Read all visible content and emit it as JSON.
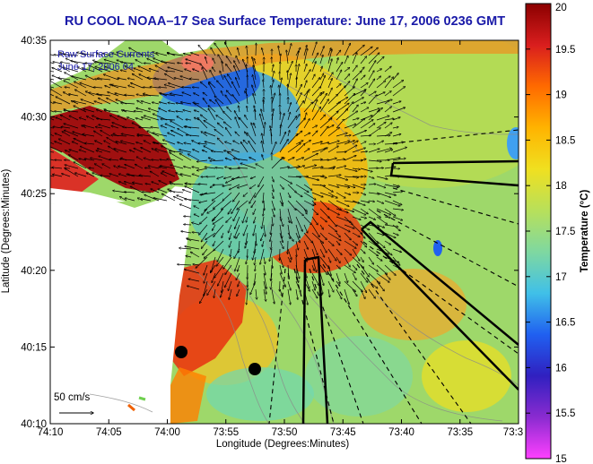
{
  "title": "RU COOL  NOAA–17  Sea Surface Temperature:  June 17, 2006 0236 GMT",
  "overlay": {
    "line1": "Raw Surface Currents",
    "line2": "June 17, 2006 04"
  },
  "scale_label": "50 cm/s",
  "x_axis": {
    "label": "Longitude (Degrees:Minutes)",
    "ticks": [
      "74:10",
      "74:05",
      "74:00",
      "73:55",
      "73:50",
      "73:45",
      "73:40",
      "73:35",
      "73:3"
    ]
  },
  "y_axis": {
    "label": "Latitude (Degrees:Minutes)",
    "ticks": [
      "40:35",
      "40:30",
      "40:25",
      "40:20",
      "40:15",
      "40:10"
    ]
  },
  "colorbar": {
    "label": "Temperature (°C)",
    "ticks": [
      "20",
      "19.5",
      "19",
      "18.5",
      "18",
      "17.5",
      "17",
      "16.5",
      "16",
      "15.5",
      "15"
    ],
    "colors": [
      "#8b0000",
      "#d91e1e",
      "#ff6a00",
      "#ffb300",
      "#f0e020",
      "#b8e05a",
      "#7fd8a0",
      "#40c0e8",
      "#2060f0",
      "#3020c0",
      "#8a2bd0",
      "#ff40ff"
    ]
  },
  "stations": [
    "station-1",
    "station-2"
  ]
}
